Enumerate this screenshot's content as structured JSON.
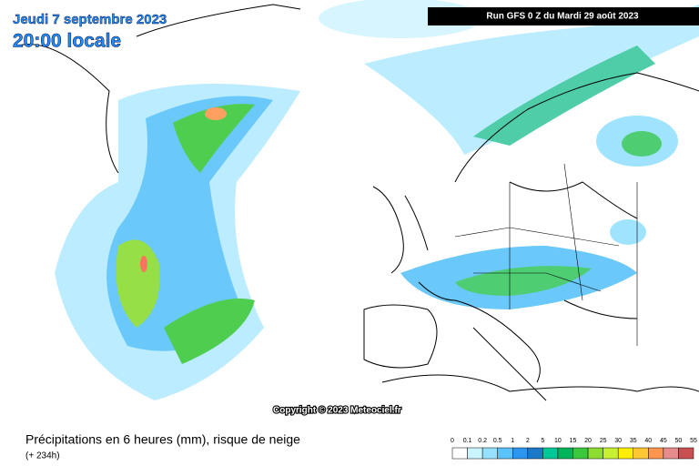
{
  "header": {
    "date": "Jeudi 7 septembre 2023",
    "time": "20:00 locale",
    "run": "Run GFS 0 Z du Mardi 29 août 2023"
  },
  "copyright": "Copyright © 2023 Meteociel.fr",
  "footer": {
    "title": "Précipitations en 6 heures (mm), risque de neige",
    "subtitle": "(+ 234h)"
  },
  "legend": {
    "labels": [
      "0",
      "0.1",
      "0.2",
      "0.5",
      "1",
      "2",
      "5",
      "10",
      "15",
      "20",
      "25",
      "30",
      "35",
      "40",
      "45",
      "50",
      "55"
    ],
    "colors": [
      "#ffffff",
      "#c8f5ff",
      "#96e1ff",
      "#5ac3fa",
      "#2d96f0",
      "#1e78c8",
      "#00c896",
      "#00b45a",
      "#3cc83c",
      "#8cdc32",
      "#c8f032",
      "#fff000",
      "#ffc832",
      "#ff9650",
      "#e68c8c",
      "#c85050"
    ]
  }
}
